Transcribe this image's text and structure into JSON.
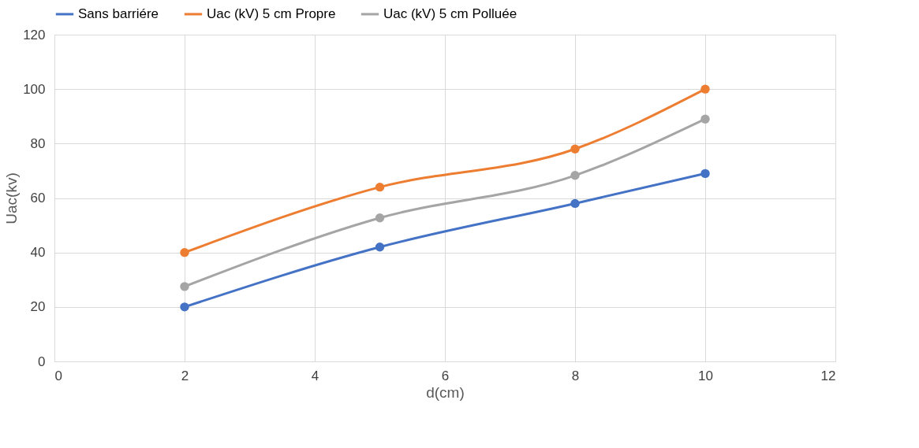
{
  "chart_data": {
    "type": "line",
    "xlabel": "d(cm)",
    "ylabel": "Uac(kv)",
    "x": [
      2,
      5,
      8,
      10
    ],
    "series": [
      {
        "name": "Sans barriére",
        "color": "#4472c4",
        "values": [
          20,
          42,
          58,
          69
        ]
      },
      {
        "name": "Uac (kV) 5 cm Propre",
        "color": "#ed7d31",
        "values": [
          40,
          64,
          78,
          100
        ]
      },
      {
        "name": "Uac (kV) 5 cm Polluée",
        "color": "#a5a5a5",
        "values": [
          27.5,
          52.7,
          68.3,
          89
        ]
      }
    ],
    "xlim": [
      0,
      12
    ],
    "xticks": [
      0,
      2,
      4,
      6,
      8,
      10,
      12
    ],
    "ylim": [
      0,
      120
    ],
    "yticks": [
      0,
      20,
      40,
      60,
      80,
      100,
      120
    ],
    "grid": true,
    "legend": "top",
    "marker": "circle",
    "line_style": "solid"
  }
}
